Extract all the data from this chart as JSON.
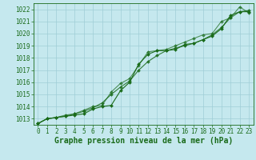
{
  "title": "Graphe pression niveau de la mer (hPa)",
  "xlabel_ticks": [
    0,
    1,
    2,
    3,
    4,
    5,
    6,
    7,
    8,
    9,
    10,
    11,
    12,
    13,
    14,
    15,
    16,
    17,
    18,
    19,
    20,
    21,
    22,
    23
  ],
  "ylim": [
    1012.5,
    1022.5
  ],
  "xlim": [
    -0.5,
    23.5
  ],
  "yticks": [
    1013,
    1014,
    1015,
    1016,
    1017,
    1018,
    1019,
    1020,
    1021,
    1022
  ],
  "bg_color": "#c5e8ee",
  "grid_color": "#9fcdd6",
  "line_color": "#1a6b1a",
  "series1": [
    1012.6,
    1013.0,
    1013.1,
    1013.2,
    1013.3,
    1013.4,
    1013.8,
    1014.0,
    1014.1,
    1015.3,
    1016.0,
    1017.5,
    1018.3,
    1018.6,
    1018.6,
    1018.7,
    1019.1,
    1019.2,
    1019.5,
    1019.8,
    1020.4,
    1021.5,
    1021.8,
    1021.8
  ],
  "series2": [
    1012.6,
    1013.0,
    1013.1,
    1013.2,
    1013.4,
    1013.6,
    1013.9,
    1014.3,
    1015.0,
    1015.6,
    1016.1,
    1017.0,
    1017.7,
    1018.2,
    1018.6,
    1018.8,
    1019.0,
    1019.2,
    1019.5,
    1019.9,
    1020.5,
    1021.3,
    1021.8,
    1021.9
  ],
  "series3": [
    1012.6,
    1013.0,
    1013.1,
    1013.3,
    1013.4,
    1013.7,
    1014.0,
    1014.1,
    1015.2,
    1015.9,
    1016.3,
    1017.4,
    1018.5,
    1018.6,
    1018.7,
    1019.0,
    1019.3,
    1019.6,
    1019.9,
    1020.0,
    1021.0,
    1021.3,
    1022.2,
    1021.7
  ],
  "marker": "D",
  "marker_size": 2.0,
  "linewidth": 0.8,
  "title_fontsize": 7,
  "tick_fontsize": 5.5
}
